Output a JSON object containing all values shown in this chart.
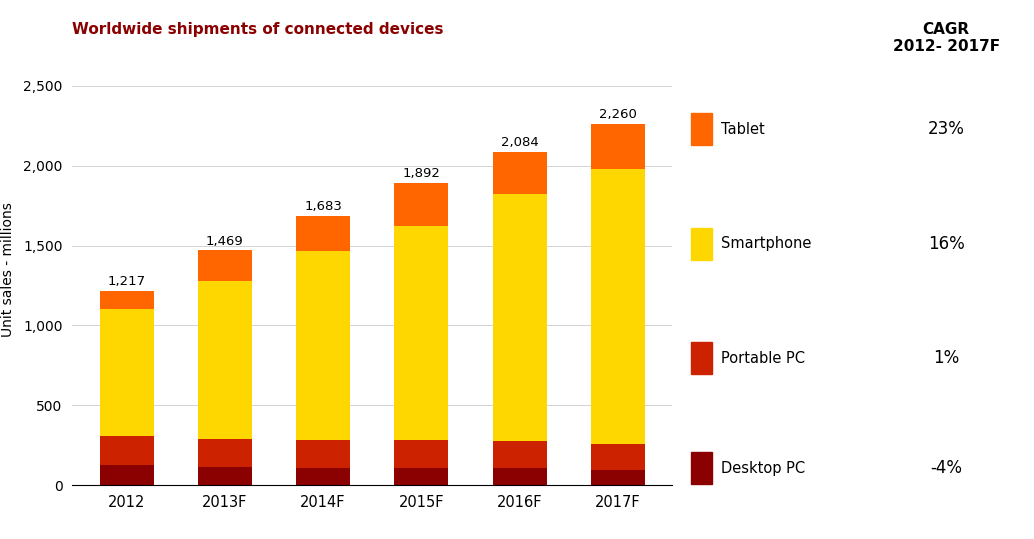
{
  "title": "Worldwide shipments of connected devices",
  "title_color": "#8B0000",
  "ylabel": "Unit sales - millions",
  "years": [
    "2012",
    "2013F",
    "2014F",
    "2015F",
    "2016F",
    "2017F"
  ],
  "totals": [
    1217,
    1469,
    1683,
    1892,
    2084,
    2260
  ],
  "desktop_pc": [
    125,
    115,
    105,
    105,
    110,
    95
  ],
  "portable_pc": [
    185,
    175,
    175,
    175,
    165,
    165
  ],
  "smartphone": [
    795,
    990,
    1185,
    1340,
    1545,
    1720
  ],
  "tablet": [
    112,
    189,
    218,
    272,
    264,
    280
  ],
  "colors": {
    "desktop_pc": "#8B0000",
    "portable_pc": "#CC2200",
    "smartphone": "#FFD700",
    "tablet": "#FF6600"
  },
  "cagr_title": "CAGR\n2012- 2017F",
  "cagr_values": [
    "23%",
    "16%",
    "1%",
    "-4%"
  ],
  "cagr_bg": "#EFEFEF",
  "ylim": [
    0,
    2700
  ],
  "yticks": [
    0,
    500,
    1000,
    1500,
    2000,
    2500
  ],
  "background_color": "#FFFFFF",
  "fig_width": 10.34,
  "fig_height": 5.39
}
